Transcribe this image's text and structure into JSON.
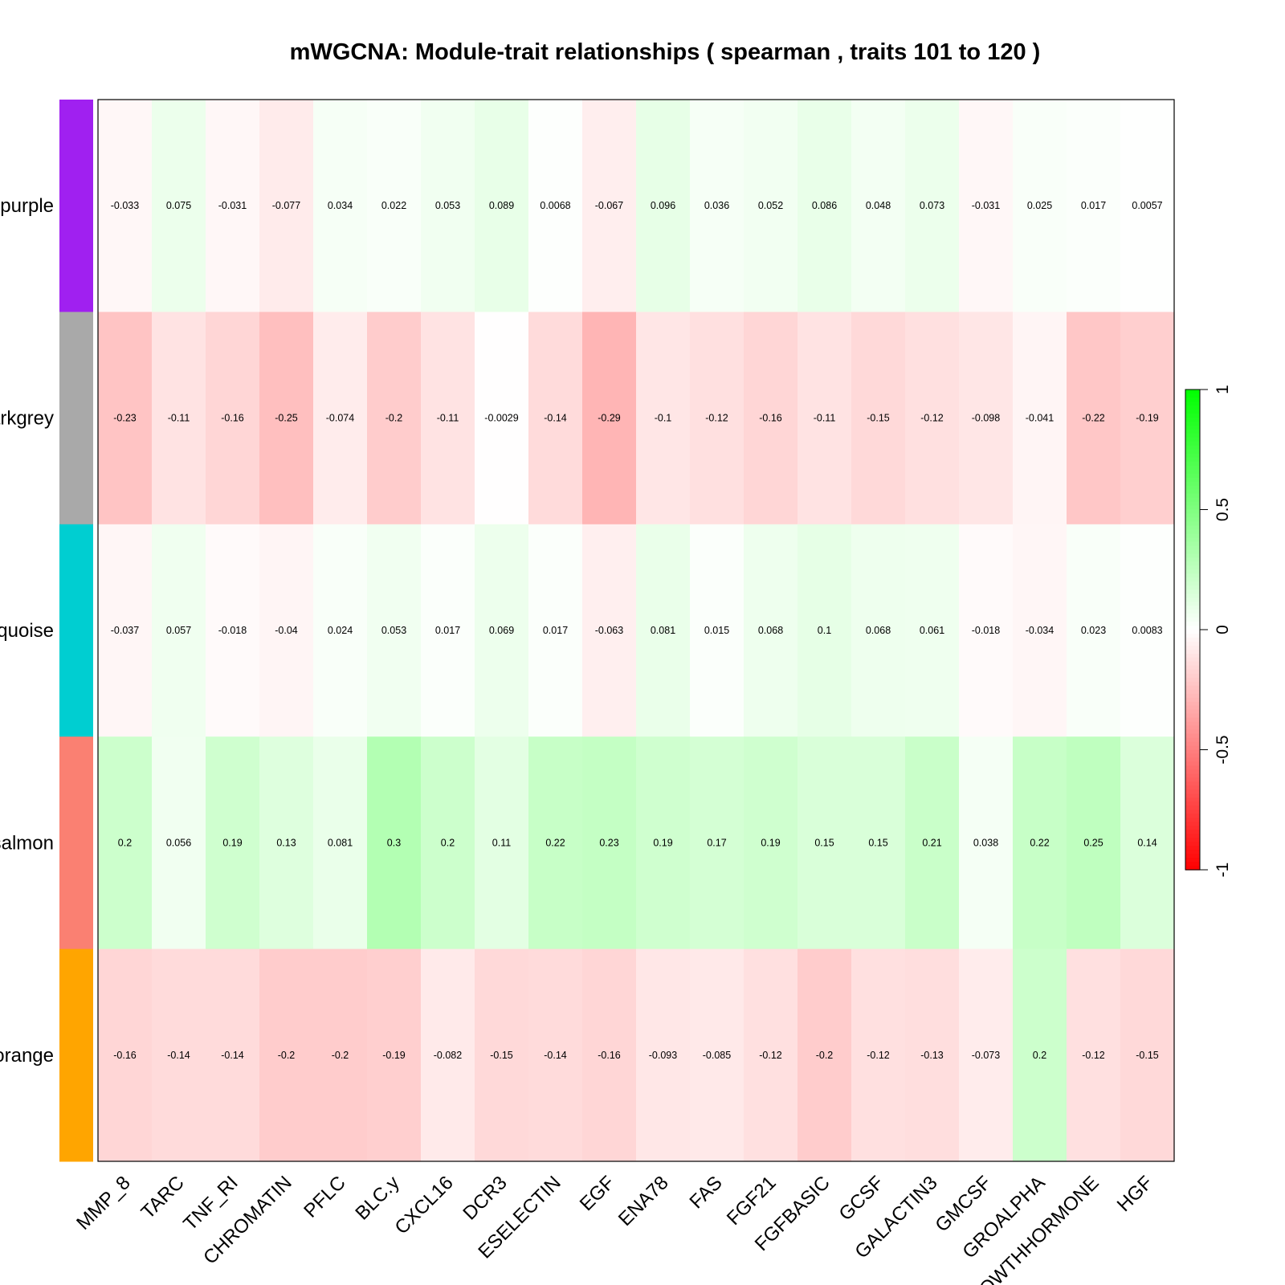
{
  "chart_data": {
    "type": "heatmap",
    "title": "mWGCNA: Module-trait relationships ( spearman , traits  101  to  120 )",
    "rows": [
      {
        "label": "purple",
        "color": "#A020F0"
      },
      {
        "label": "darkgrey",
        "color": "#A9A9A9"
      },
      {
        "label": "turquoise",
        "color": "#00CED1"
      },
      {
        "label": "salmon",
        "color": "#FA8072"
      },
      {
        "label": "orange",
        "color": "#FFA500"
      }
    ],
    "columns": [
      "MMP_8",
      "TARC",
      "TNF_RI",
      "CHROMATIN",
      "PFLC",
      "BLC.y",
      "CXCL16",
      "DCR3",
      "ESELECTIN",
      "EGF",
      "ENA78",
      "FAS",
      "FGF21",
      "FGFBASIC",
      "GCSF",
      "GALACTIN3",
      "GMCSF",
      "GROALPHA",
      "GROWTHHORMONE",
      "HGF"
    ],
    "values": [
      [
        -0.033,
        0.075,
        -0.031,
        -0.077,
        0.034,
        0.022,
        0.053,
        0.089,
        0.0068,
        -0.067,
        0.096,
        0.036,
        0.052,
        0.086,
        0.048,
        0.073,
        -0.031,
        0.025,
        0.017,
        0.0057
      ],
      [
        -0.23,
        -0.11,
        -0.16,
        -0.25,
        -0.074,
        -0.2,
        -0.11,
        -0.0029,
        -0.14,
        -0.29,
        -0.1,
        -0.12,
        -0.16,
        -0.11,
        -0.15,
        -0.12,
        -0.098,
        -0.041,
        -0.22,
        -0.19
      ],
      [
        -0.037,
        0.057,
        -0.018,
        -0.04,
        0.024,
        0.053,
        0.017,
        0.069,
        0.017,
        -0.063,
        0.081,
        0.015,
        0.068,
        0.1,
        0.068,
        0.061,
        -0.018,
        -0.034,
        0.023,
        0.0083
      ],
      [
        0.2,
        0.056,
        0.19,
        0.13,
        0.081,
        0.3,
        0.2,
        0.11,
        0.22,
        0.23,
        0.19,
        0.17,
        0.19,
        0.15,
        0.15,
        0.21,
        0.038,
        0.22,
        0.25,
        0.14
      ],
      [
        -0.16,
        -0.14,
        -0.14,
        -0.2,
        -0.2,
        -0.19,
        -0.082,
        -0.15,
        -0.14,
        -0.16,
        -0.093,
        -0.085,
        -0.12,
        -0.2,
        -0.12,
        -0.13,
        -0.073,
        0.2,
        -0.12,
        -0.15
      ]
    ],
    "value_labels": [
      [
        "-0.033",
        "0.075",
        "-0.031",
        "-0.077",
        "0.034",
        "0.022",
        "0.053",
        "0.089",
        "0.0068",
        "-0.067",
        "0.096",
        "0.036",
        "0.052",
        "0.086",
        "0.048",
        "0.073",
        "-0.031",
        "0.025",
        "0.017",
        "0.0057"
      ],
      [
        "-0.23",
        "-0.11",
        "-0.16",
        "-0.25",
        "-0.074",
        "-0.2",
        "-0.11",
        "-0.0029",
        "-0.14",
        "-0.29",
        "-0.1",
        "-0.12",
        "-0.16",
        "-0.11",
        "-0.15",
        "-0.12",
        "-0.098",
        "-0.041",
        "-0.22",
        "-0.19"
      ],
      [
        "-0.037",
        "0.057",
        "-0.018",
        "-0.04",
        "0.024",
        "0.053",
        "0.017",
        "0.069",
        "0.017",
        "-0.063",
        "0.081",
        "0.015",
        "0.068",
        "0.1",
        "0.068",
        "0.061",
        "-0.018",
        "-0.034",
        "0.023",
        "0.0083"
      ],
      [
        "0.2",
        "0.056",
        "0.19",
        "0.13",
        "0.081",
        "0.3",
        "0.2",
        "0.11",
        "0.22",
        "0.23",
        "0.19",
        "0.17",
        "0.19",
        "0.15",
        "0.15",
        "0.21",
        "0.038",
        "0.22",
        "0.25",
        "0.14"
      ],
      [
        "-0.16",
        "-0.14",
        "-0.14",
        "-0.2",
        "-0.2",
        "-0.19",
        "-0.082",
        "-0.15",
        "-0.14",
        "-0.16",
        "-0.093",
        "-0.085",
        "-0.12",
        "-0.2",
        "-0.12",
        "-0.13",
        "-0.073",
        "0.2",
        "-0.12",
        "-0.15"
      ]
    ],
    "color_scale": {
      "low": "#FF0000",
      "mid": "#FFFFFF",
      "high": "#00FF00",
      "range": [
        -1,
        1
      ],
      "ticks": [
        {
          "value": -1,
          "label": "-1"
        },
        {
          "value": -0.5,
          "label": "-0.5"
        },
        {
          "value": 0,
          "label": "0"
        },
        {
          "value": 0.5,
          "label": "0.5"
        },
        {
          "value": 1,
          "label": "1"
        }
      ]
    },
    "legend_position": "right"
  }
}
